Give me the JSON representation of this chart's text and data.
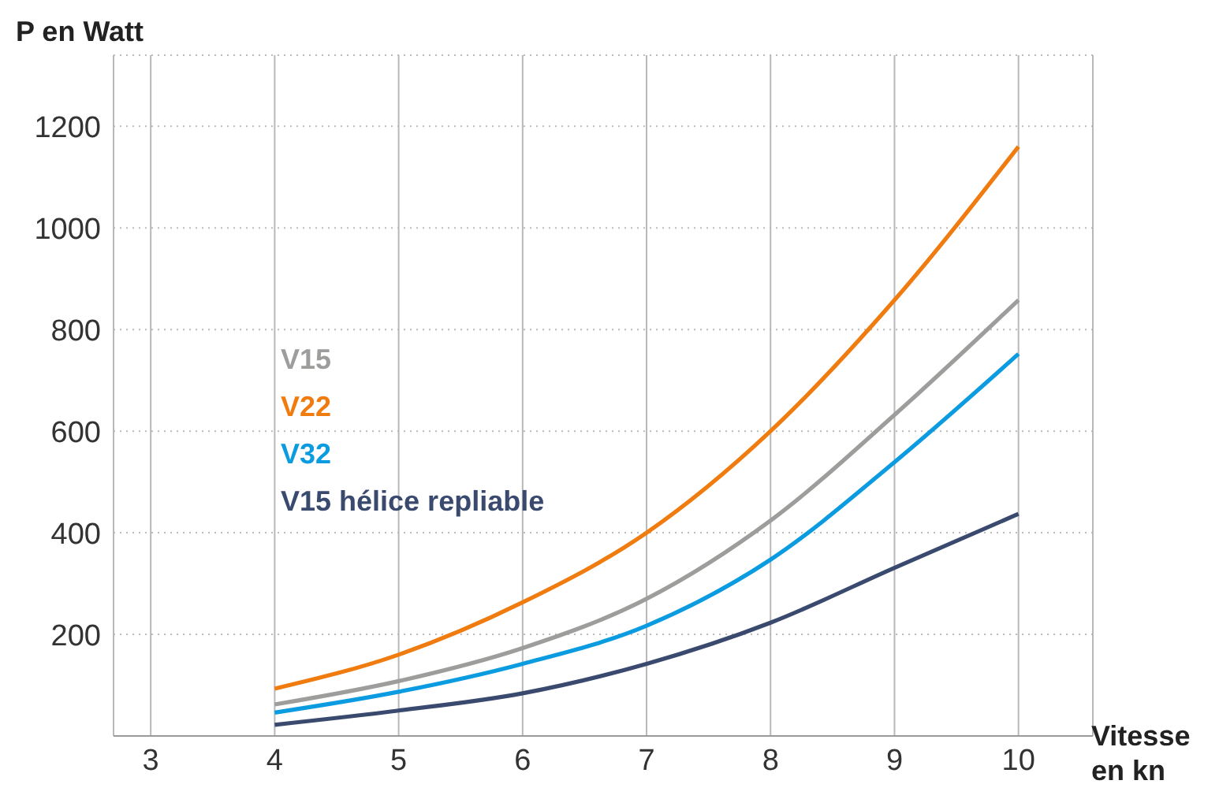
{
  "chart_data": {
    "type": "line",
    "xlabel": "Vitesse en kn",
    "ylabel": "P en Watt",
    "x": [
      4,
      5,
      6,
      7,
      8,
      9,
      10
    ],
    "series": [
      {
        "name": "V15",
        "color": "#9d9d9c",
        "values": [
          62,
          108,
          173,
          270,
          424,
          632,
          858
        ]
      },
      {
        "name": "V22",
        "color": "#f07b0f",
        "values": [
          93,
          160,
          263,
          400,
          600,
          858,
          1160
        ]
      },
      {
        "name": "V32",
        "color": "#0a9be0",
        "values": [
          46,
          87,
          142,
          217,
          347,
          539,
          752
        ]
      },
      {
        "name": "V15 hélice repliable",
        "color": "#3a4a6e",
        "values": [
          22,
          50,
          84,
          142,
          223,
          331,
          437
        ]
      }
    ],
    "xlim": [
      2.7,
      10.6
    ],
    "xticks": [
      3,
      4,
      5,
      6,
      7,
      8,
      9,
      10
    ],
    "ylim": [
      0,
      1340
    ],
    "yticks": [
      200,
      400,
      600,
      800,
      1000,
      1200
    ],
    "grid": true,
    "legend": "left",
    "marker": "none",
    "line_style": "solid"
  }
}
